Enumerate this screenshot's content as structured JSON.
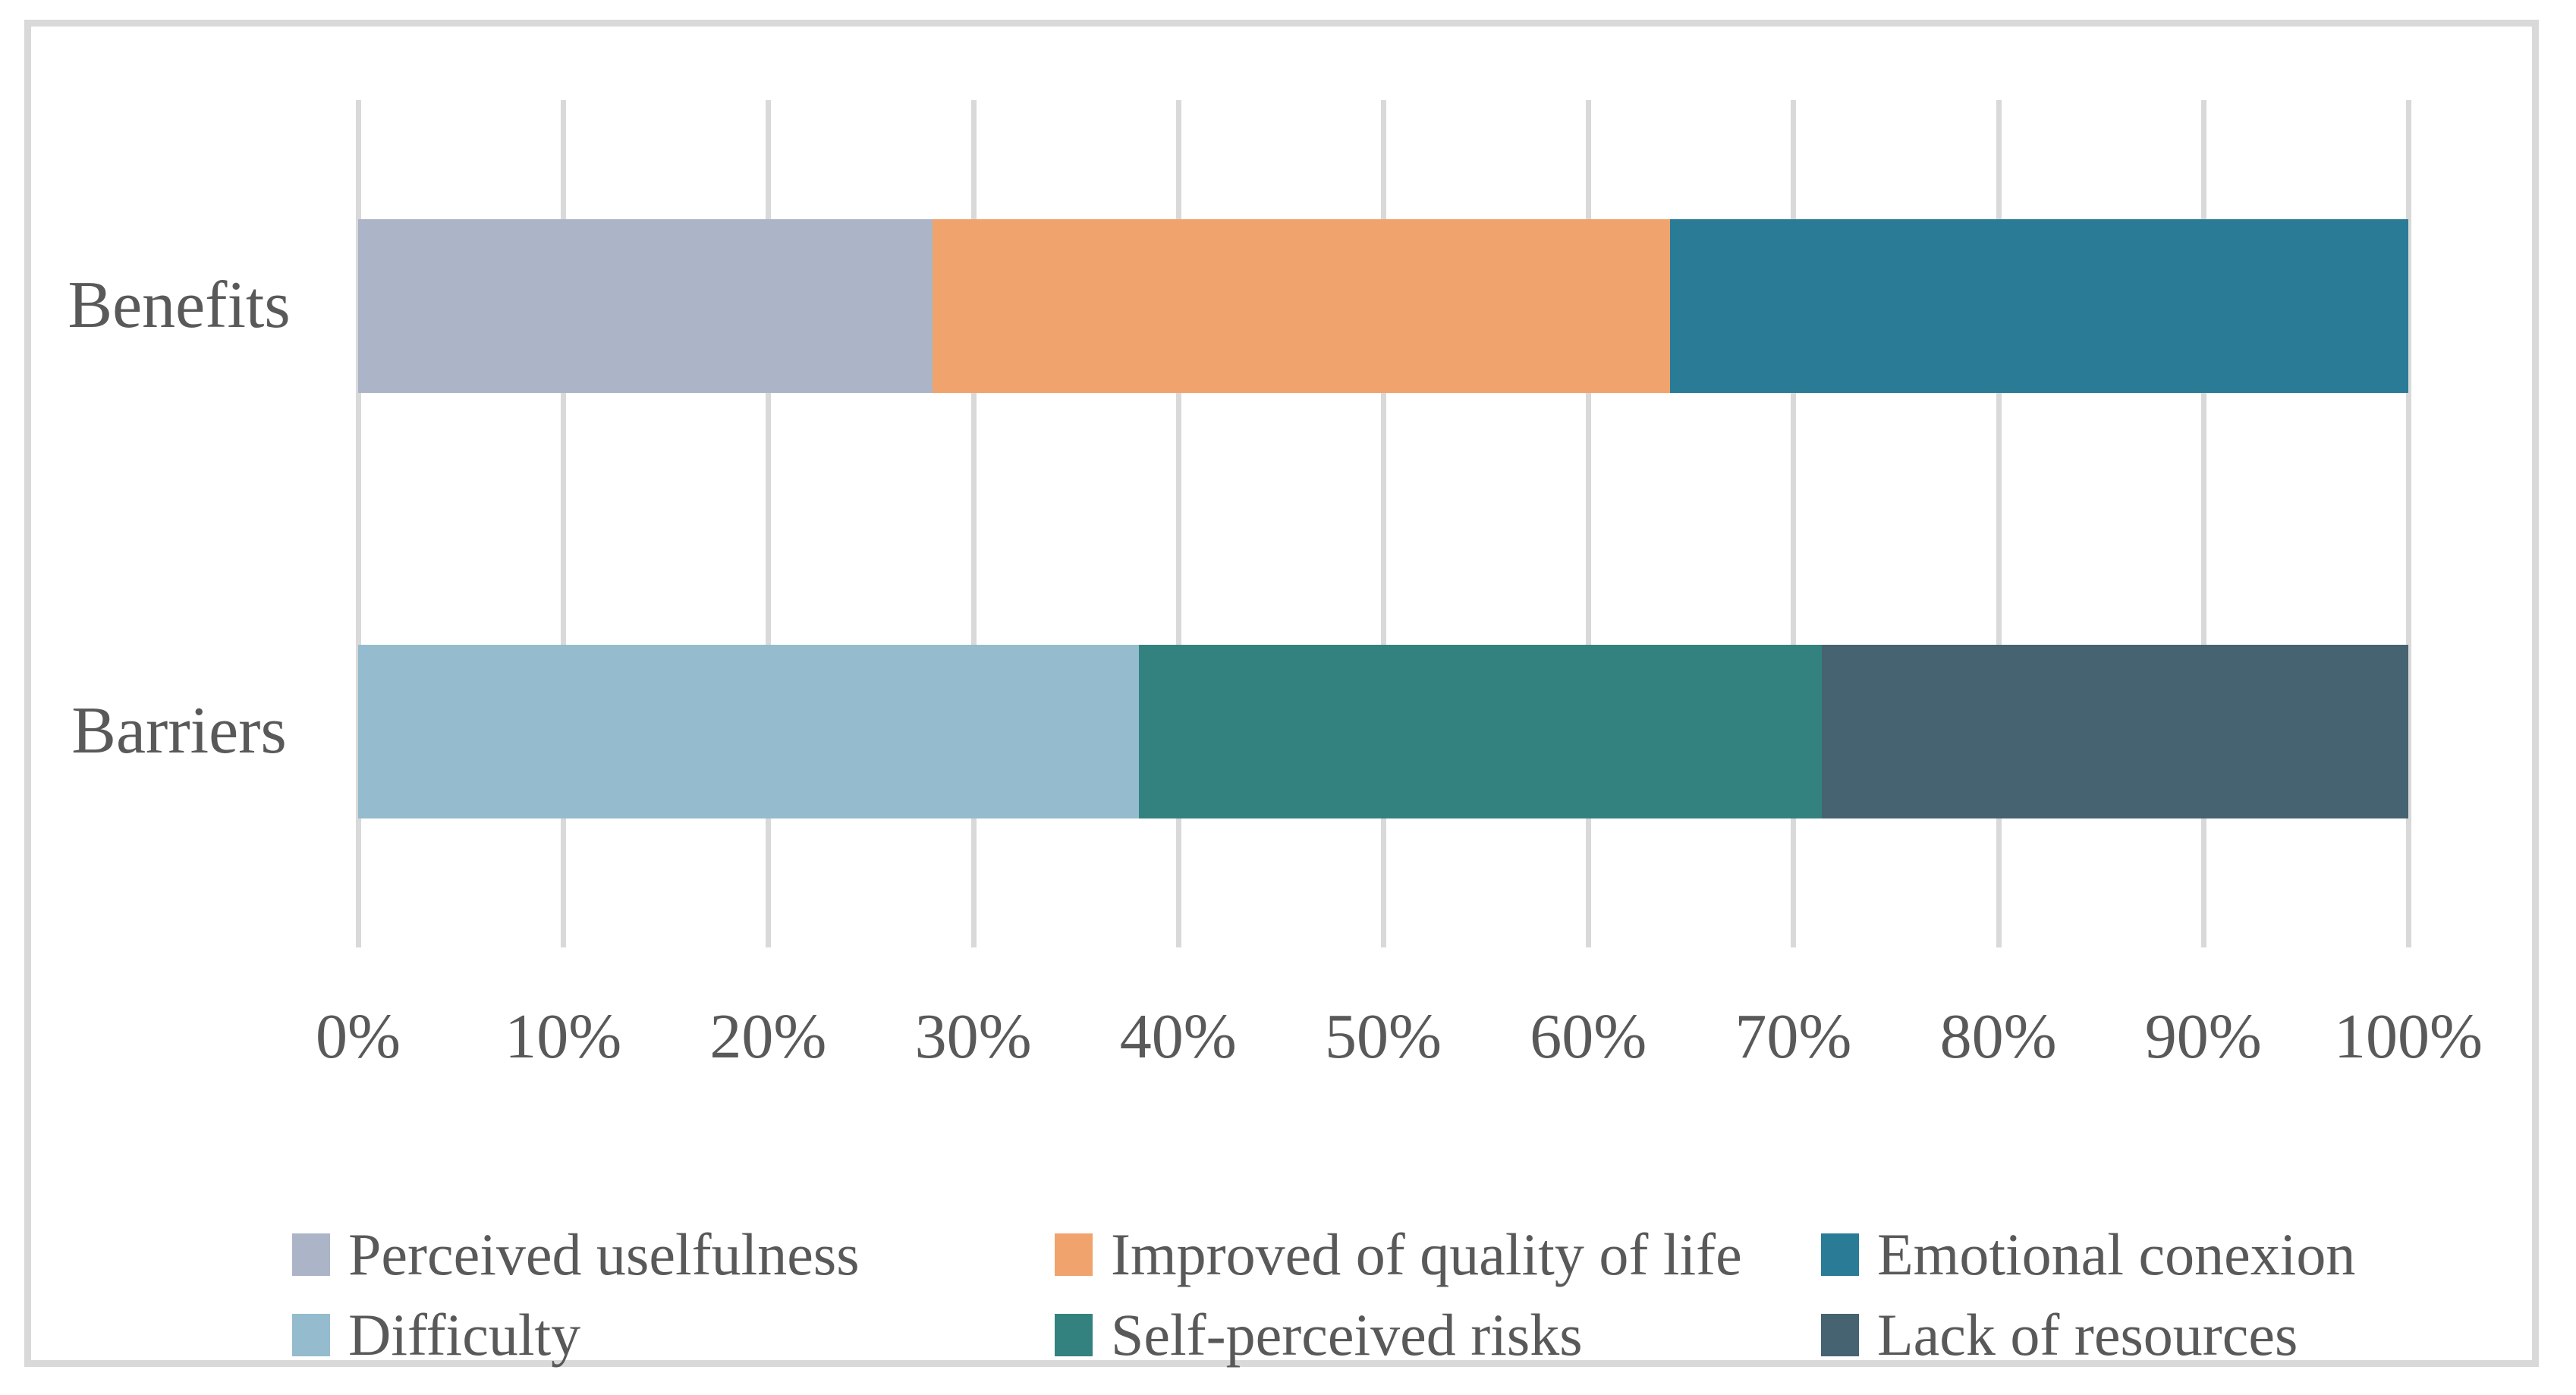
{
  "chart_data": {
    "type": "bar",
    "orientation": "horizontal",
    "stacked": true,
    "percent_stacked": true,
    "title": "",
    "categories": [
      "Benefits",
      "Barriers"
    ],
    "series_by_category": {
      "Benefits": [
        {
          "name": "Perceived uselfulness",
          "value_pct": 28.0,
          "color": "#acb5c7"
        },
        {
          "name": "Improved of quality of life",
          "value_pct": 36.0,
          "color": "#f0a36c"
        },
        {
          "name": "Emotional conexion",
          "value_pct": 36.0,
          "color": "#2a7b96"
        }
      ],
      "Barriers": [
        {
          "name": "Difficulty",
          "value_pct": 38.1,
          "color": "#94bcce"
        },
        {
          "name": "Self-perceived risks",
          "value_pct": 33.3,
          "color": "#338280"
        },
        {
          "name": "Lack of resources",
          "value_pct": 28.6,
          "color": "#466371"
        }
      ]
    },
    "x_axis": {
      "min": 0,
      "max": 100,
      "tick_step": 10,
      "tick_labels": [
        "0%",
        "10%",
        "20%",
        "30%",
        "40%",
        "50%",
        "60%",
        "70%",
        "80%",
        "90%",
        "100%"
      ],
      "grid": true,
      "gridline_color": "#d9d9d9"
    },
    "legend": {
      "position": "bottom",
      "items": [
        {
          "label": "Perceived uselfulness",
          "color": "#acb5c7"
        },
        {
          "label": "Improved of quality of life",
          "color": "#f0a36c"
        },
        {
          "label": "Emotional conexion",
          "color": "#2a7b96"
        },
        {
          "label": "Difficulty",
          "color": "#94bcce"
        },
        {
          "label": "Self-perceived risks",
          "color": "#338280"
        },
        {
          "label": "Lack of resources",
          "color": "#466371"
        }
      ]
    },
    "colors": {
      "text": "#595959",
      "border": "#d9d9d9",
      "background": "#ffffff"
    }
  }
}
